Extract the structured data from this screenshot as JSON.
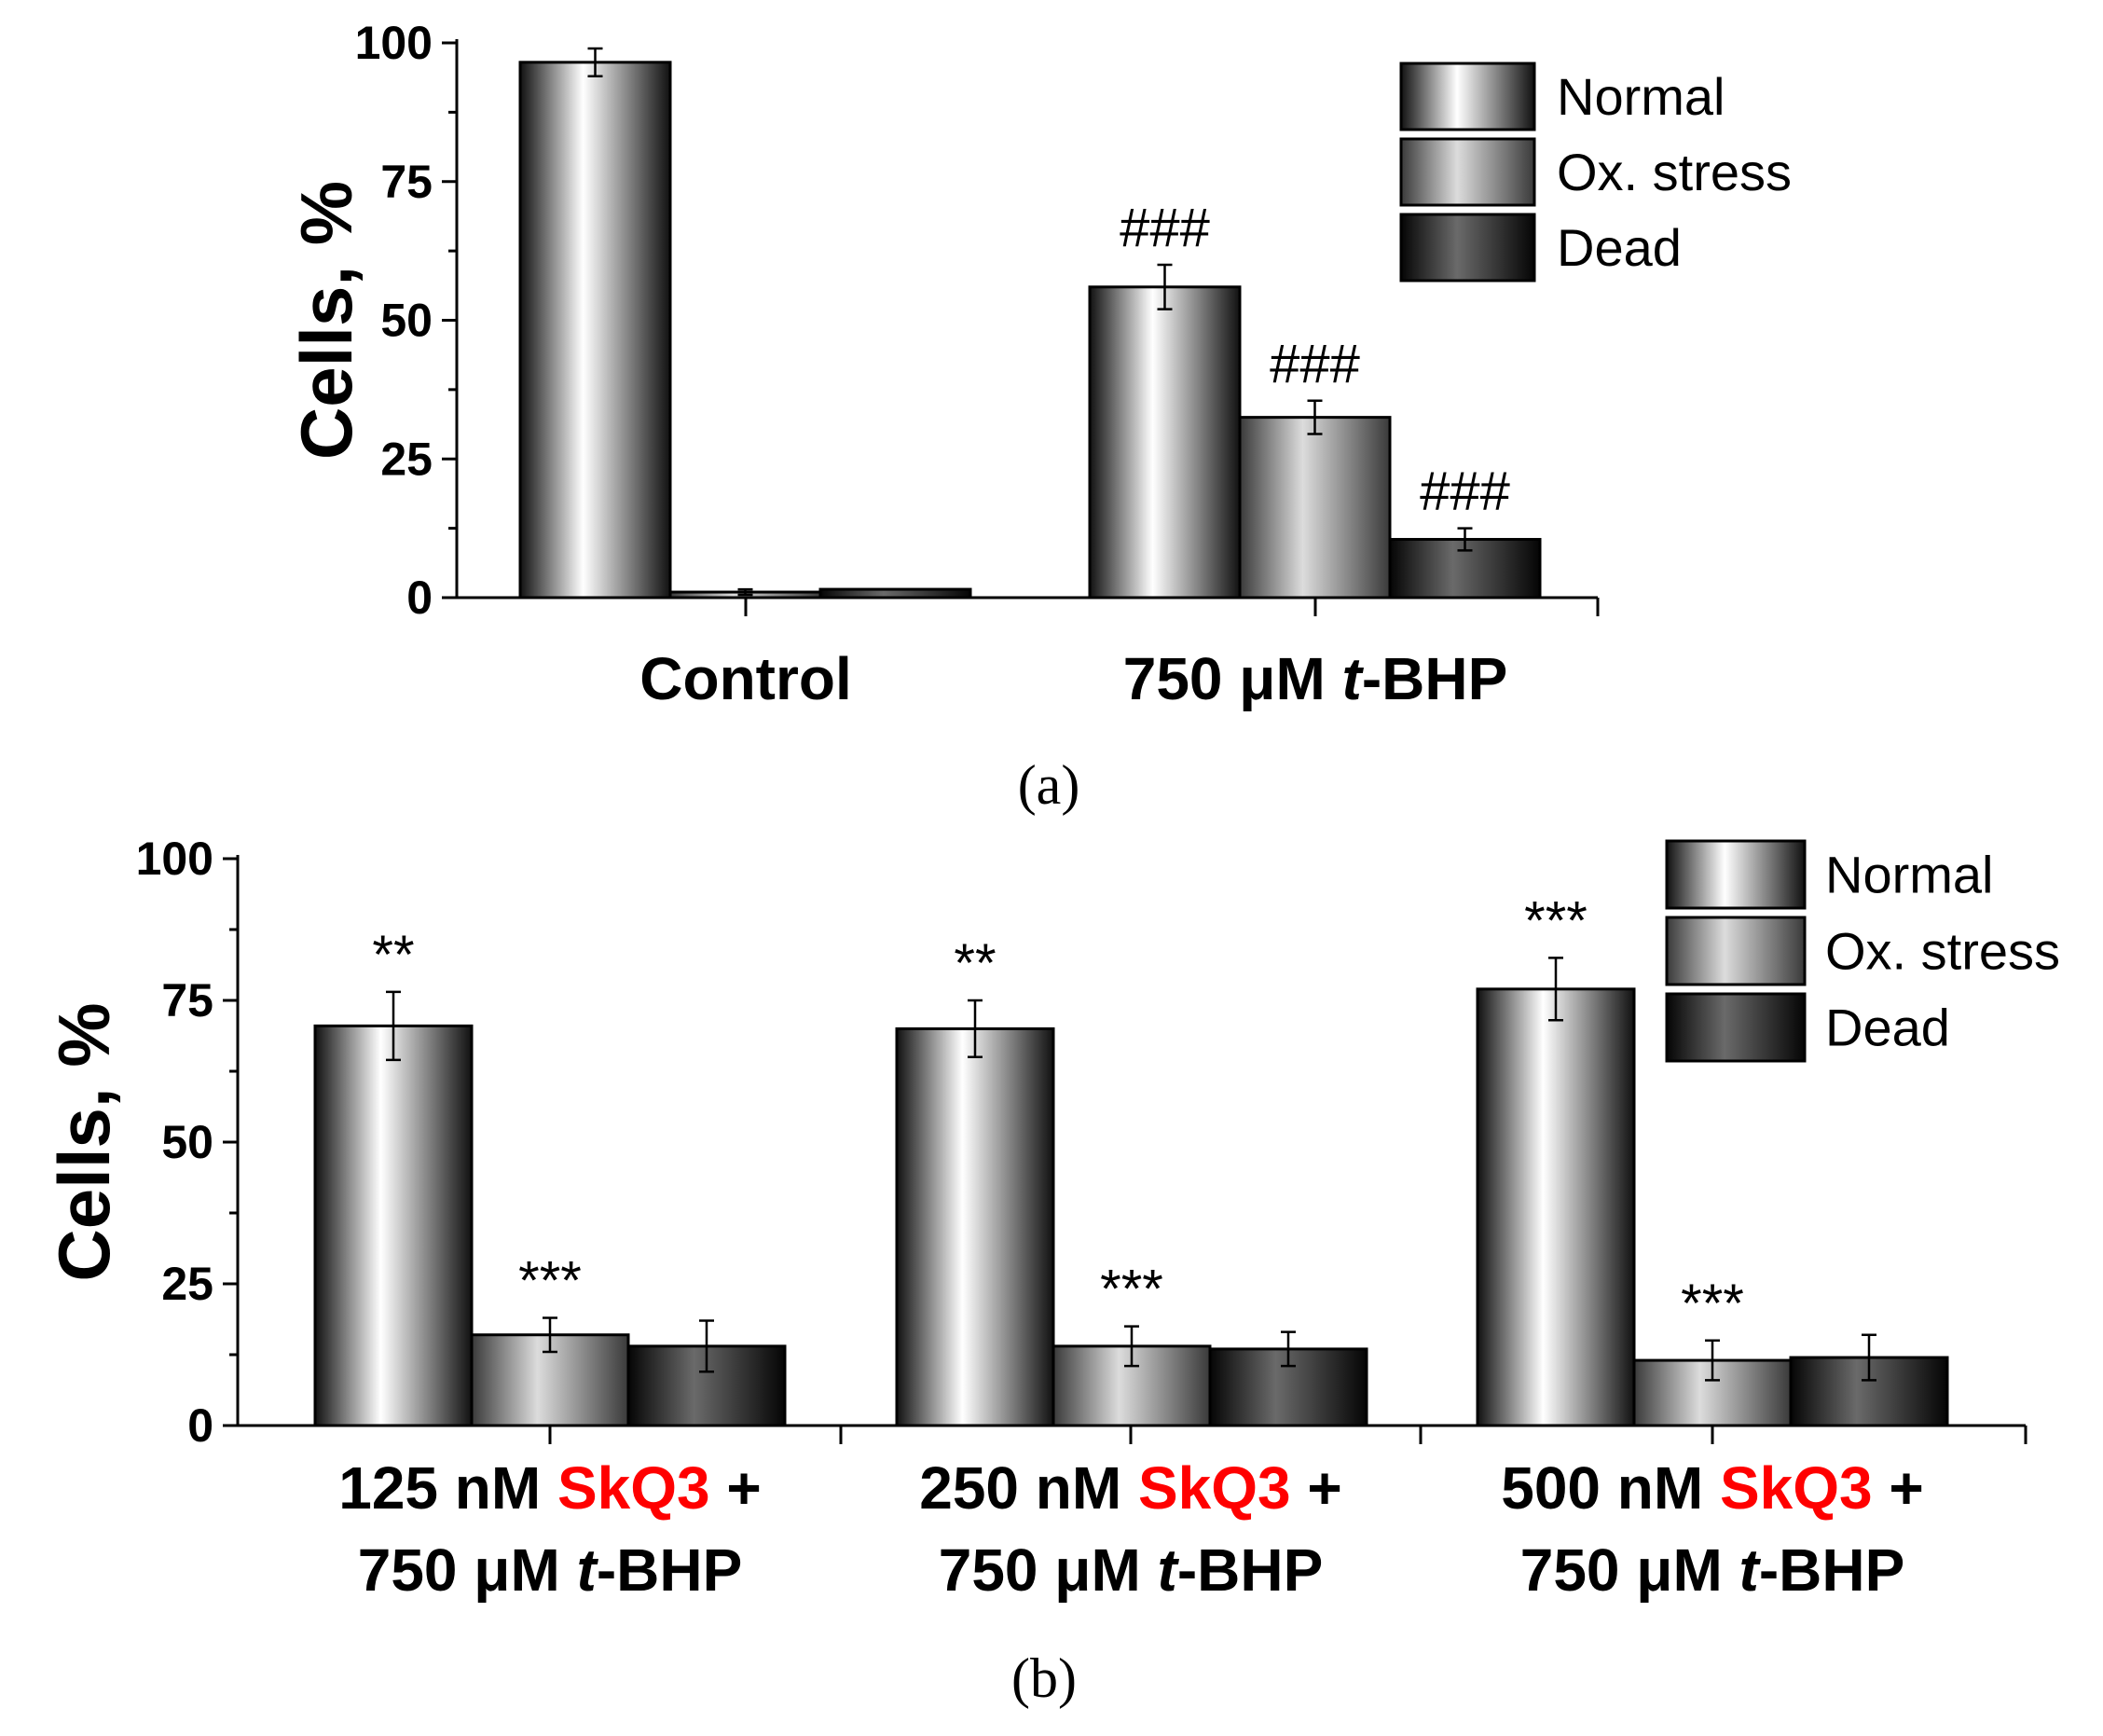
{
  "colors": {
    "normal_edge": "#111111",
    "normal_mid": "#ffffff",
    "ox_edge": "#3a3a3a",
    "ox_mid": "#dcdcdc",
    "dead_edge": "#050505",
    "dead_mid": "#6a6a6a",
    "highlight": "#ff0000"
  },
  "chart_data": [
    {
      "type": "bar",
      "panel": "(a)",
      "ylabel": "Cells, %",
      "ylim": [
        0,
        100
      ],
      "yticks": [
        "0",
        "25",
        "50",
        "75",
        "100"
      ],
      "legend": [
        "Normal",
        "Ox. stress",
        "Dead"
      ],
      "legend_position": "top-right",
      "categories": [
        {
          "parts": [
            {
              "text": "Control"
            }
          ]
        },
        {
          "parts": [
            {
              "text": "750 μM "
            },
            {
              "text": "t",
              "style": "italic"
            },
            {
              "text": "-BHP"
            }
          ]
        }
      ],
      "series": [
        {
          "name": "Normal",
          "values": [
            96.5,
            56
          ],
          "errors": [
            2.5,
            4
          ],
          "annotations": [
            "",
            "###"
          ]
        },
        {
          "name": "Ox. stress",
          "values": [
            1,
            32.5
          ],
          "errors": [
            0.5,
            3
          ],
          "annotations": [
            "",
            "###"
          ]
        },
        {
          "name": "Dead",
          "values": [
            1.5,
            10.5
          ],
          "errors": [
            0,
            2
          ],
          "annotations": [
            "",
            "###"
          ]
        }
      ]
    },
    {
      "type": "bar",
      "panel": "(b)",
      "ylabel": "Cells, %",
      "ylim": [
        0,
        100
      ],
      "yticks": [
        "0",
        "25",
        "50",
        "75",
        "100"
      ],
      "legend": [
        "Normal",
        "Ox. stress",
        "Dead"
      ],
      "legend_position": "top-right",
      "categories": [
        {
          "lines": [
            [
              {
                "text": "125 nM "
              },
              {
                "text": "SkQ3",
                "style": "red"
              },
              {
                "text": " +"
              }
            ],
            [
              {
                "text": "750 μM "
              },
              {
                "text": "t",
                "style": "italic"
              },
              {
                "text": "-BHP"
              }
            ]
          ]
        },
        {
          "lines": [
            [
              {
                "text": "250 nM "
              },
              {
                "text": "SkQ3",
                "style": "red"
              },
              {
                "text": " +"
              }
            ],
            [
              {
                "text": "750 μM "
              },
              {
                "text": "t",
                "style": "italic"
              },
              {
                "text": "-BHP"
              }
            ]
          ]
        },
        {
          "lines": [
            [
              {
                "text": "500 nM "
              },
              {
                "text": "SkQ3",
                "style": "red"
              },
              {
                "text": " +"
              }
            ],
            [
              {
                "text": "750 μM "
              },
              {
                "text": "t",
                "style": "italic"
              },
              {
                "text": "-BHP"
              }
            ]
          ]
        }
      ],
      "series": [
        {
          "name": "Normal",
          "values": [
            70.5,
            70,
            77
          ],
          "errors": [
            6,
            5,
            5.5
          ],
          "annotations": [
            "**",
            "**",
            "***"
          ]
        },
        {
          "name": "Ox. stress",
          "values": [
            16,
            14,
            11.5
          ],
          "errors": [
            3,
            3.5,
            3.5
          ],
          "annotations": [
            "***",
            "***",
            "***"
          ]
        },
        {
          "name": "Dead",
          "values": [
            14,
            13.5,
            12
          ],
          "errors": [
            4.5,
            3,
            4
          ],
          "annotations": [
            "",
            "",
            ""
          ]
        }
      ]
    }
  ]
}
